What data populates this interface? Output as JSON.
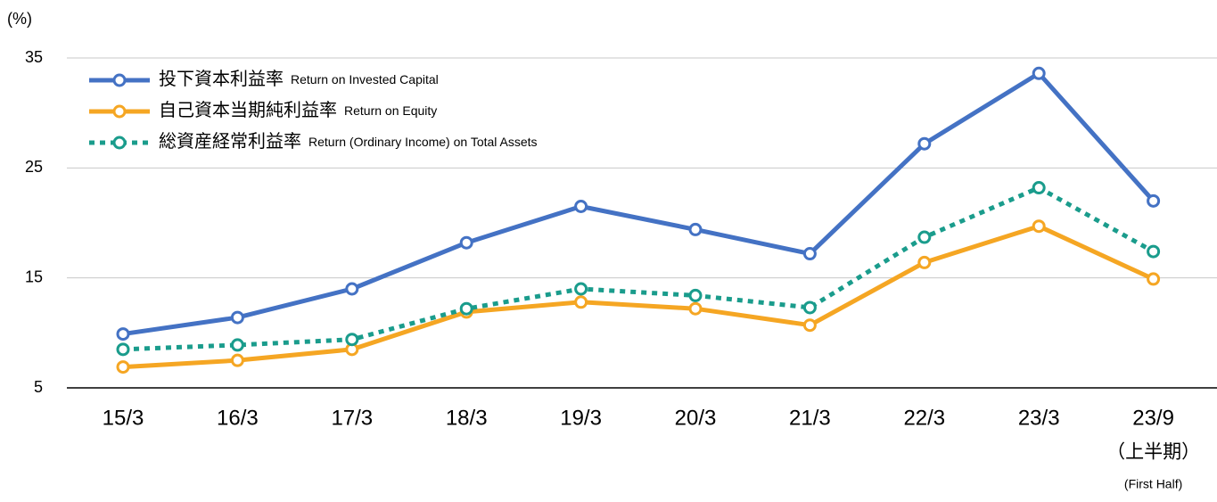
{
  "chart_data": {
    "type": "line",
    "unit_label": "(%)",
    "categories": [
      "15/3",
      "16/3",
      "17/3",
      "18/3",
      "19/3",
      "20/3",
      "21/3",
      "22/3",
      "23/3",
      "23/9"
    ],
    "last_category_subtitle": [
      "（上半期）",
      "(First Half)"
    ],
    "ylim": [
      5,
      35
    ],
    "yticks": [
      5,
      15,
      25,
      35
    ],
    "grid": true,
    "legend": "top-left",
    "series": [
      {
        "name": "投下資本利益率",
        "english_name": "Return on Invested Capital",
        "color": "#4472c4",
        "dash": false,
        "values": [
          9.9,
          11.4,
          14.0,
          18.2,
          21.5,
          19.4,
          17.2,
          27.2,
          33.6,
          22.0
        ]
      },
      {
        "name": "自己資本当期純利益率",
        "english_name": "Return on Equity",
        "color": "#f5a623",
        "dash": false,
        "values": [
          6.9,
          7.5,
          8.5,
          11.9,
          12.8,
          12.2,
          10.7,
          16.4,
          19.7,
          14.9
        ]
      },
      {
        "name": "総資産経常利益率",
        "english_name": "Return (Ordinary Income) on Total Assets",
        "color": "#1a9c8c",
        "dash": true,
        "values": [
          8.5,
          8.9,
          9.4,
          12.2,
          14.0,
          13.4,
          12.3,
          18.7,
          23.2,
          17.4
        ]
      }
    ]
  }
}
